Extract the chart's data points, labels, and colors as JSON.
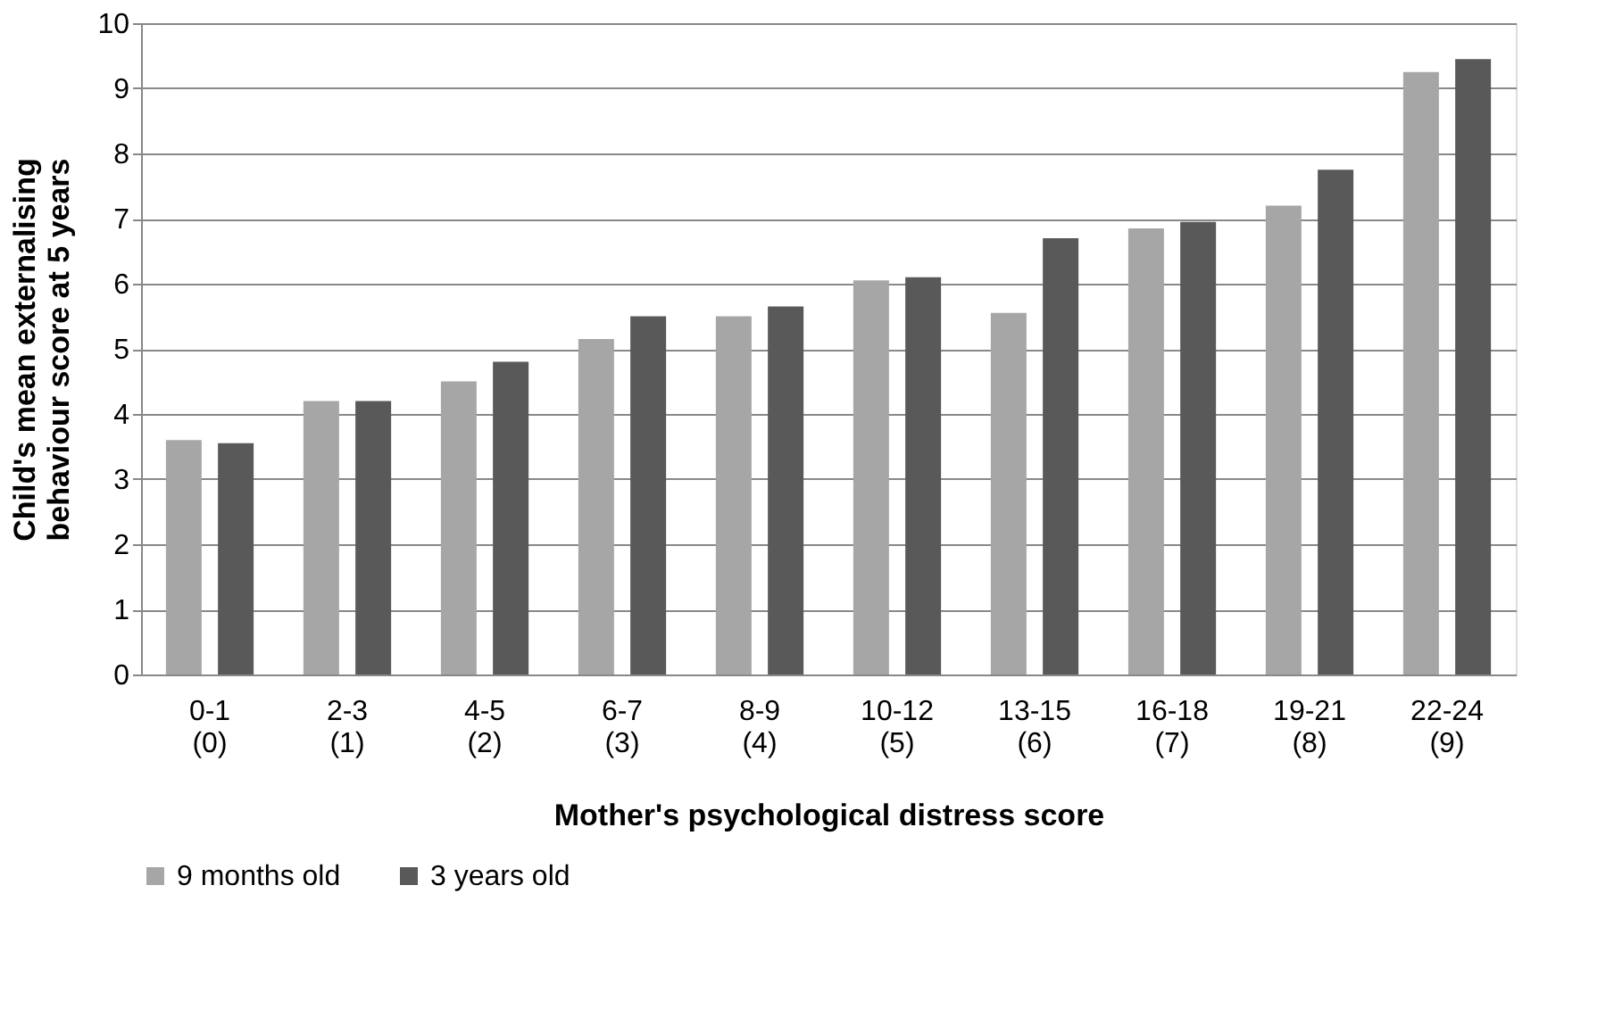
{
  "chart_data": {
    "type": "bar",
    "xlabel": "Mother's psychological distress score",
    "ylabel": "Child's mean externalising\nbehaviour score at 5 years",
    "categories": [
      "0-1\n(0)",
      "2-3\n(1)",
      "4-5\n(2)",
      "6-7\n(3)",
      "8-9\n(4)",
      "10-12\n(5)",
      "13-15\n(6)",
      "16-18\n(7)",
      "19-21\n(8)",
      "22-24\n(9)"
    ],
    "series": [
      {
        "name": "9 months old",
        "color": "#a6a6a6",
        "values": [
          3.6,
          4.2,
          4.5,
          5.15,
          5.5,
          6.05,
          5.55,
          6.85,
          7.2,
          9.25
        ]
      },
      {
        "name": "3 years old",
        "color": "#595959",
        "values": [
          3.55,
          4.2,
          4.8,
          5.5,
          5.65,
          6.1,
          6.7,
          6.95,
          7.75,
          9.45
        ]
      }
    ],
    "ylim": [
      0,
      10
    ],
    "yticks": [
      0,
      1,
      2,
      3,
      4,
      5,
      6,
      7,
      8,
      9,
      10
    ],
    "grid": "y",
    "legend": "bottom"
  }
}
